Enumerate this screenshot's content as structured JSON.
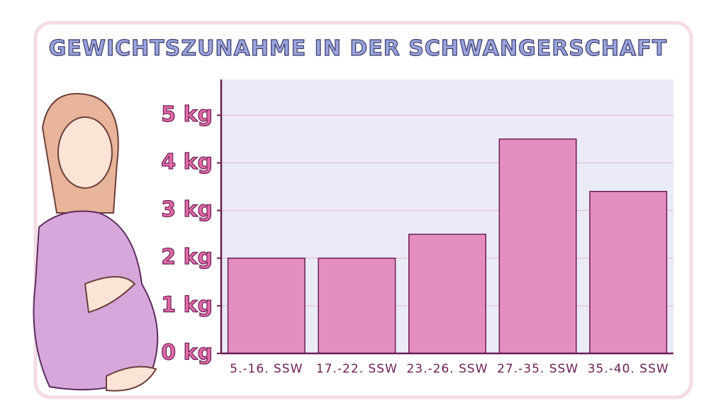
{
  "chart_data": {
    "type": "bar",
    "title": "GEWICHTSZUNAHME IN DER SCHWANGERSCHAFT",
    "categories": [
      "5.-16. SSW",
      "17.-22. SSW",
      "23.-26. SSW",
      "27.-35. SSW",
      "35.-40. SSW"
    ],
    "values": [
      2,
      2,
      2.5,
      4.5,
      3.4
    ],
    "color": "#e48fc0",
    "ylim": [
      0,
      5.75
    ],
    "yticks": [
      {
        "value": 0,
        "label": "0 kg"
      },
      {
        "value": 1,
        "label": "1 kg"
      },
      {
        "value": 2,
        "label": "2 kg"
      },
      {
        "value": 3,
        "label": "3 kg"
      },
      {
        "value": 4,
        "label": "4 kg"
      },
      {
        "value": 5,
        "label": "5 kg"
      }
    ],
    "grid": true
  }
}
